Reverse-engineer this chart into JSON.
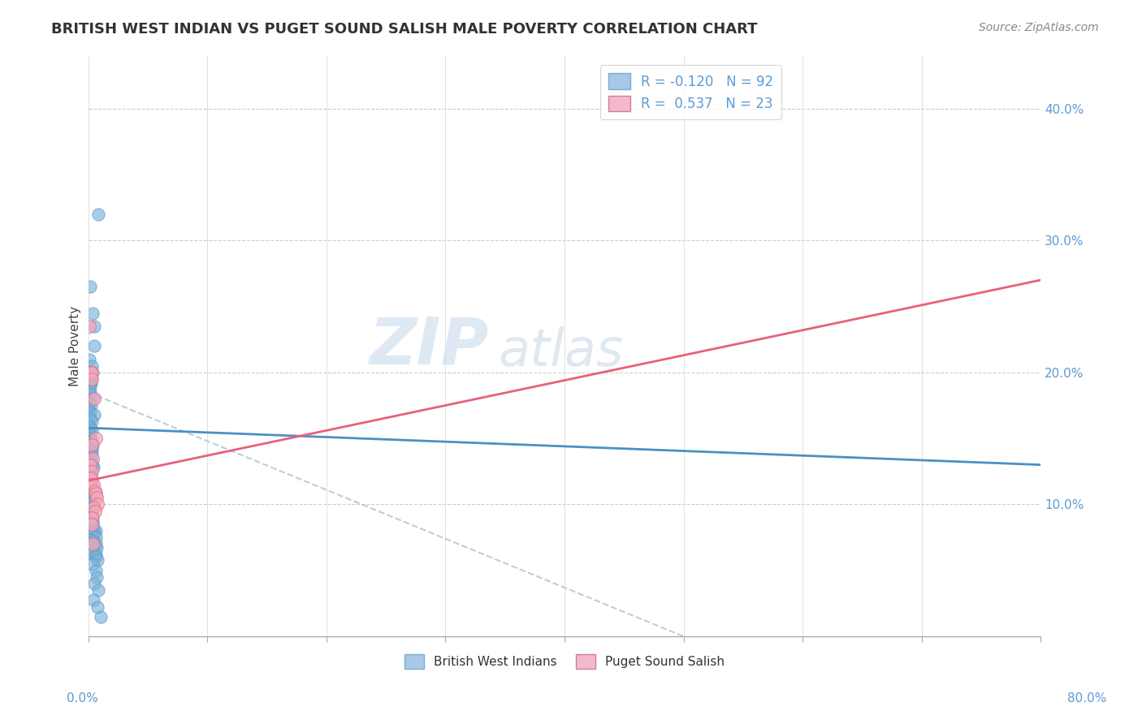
{
  "title": "BRITISH WEST INDIAN VS PUGET SOUND SALISH MALE POVERTY CORRELATION CHART",
  "source_text": "Source: ZipAtlas.com",
  "ylabel": "Male Poverty",
  "ytick_labels": [
    "10.0%",
    "20.0%",
    "30.0%",
    "40.0%"
  ],
  "ytick_values": [
    0.1,
    0.2,
    0.3,
    0.4
  ],
  "xlim": [
    0.0,
    0.8
  ],
  "ylim": [
    0.0,
    0.44
  ],
  "series1_color": "#7ab3d9",
  "series1_edge": "#5a9bc4",
  "series2_color": "#f4a8bc",
  "series2_edge": "#d9728a",
  "blue_line_color": "#4a90c4",
  "pink_line_color": "#e8607a",
  "dashed_line_color": "#a8c4d8",
  "watermark_zip": "ZIP",
  "watermark_atlas": "atlas",
  "blue_R": -0.12,
  "blue_N": 92,
  "pink_R": 0.537,
  "pink_N": 23,
  "blue_line_x0": 0.0,
  "blue_line_y0": 0.158,
  "blue_line_x1": 0.8,
  "blue_line_y1": 0.13,
  "pink_line_x0": 0.0,
  "pink_line_y0": 0.118,
  "pink_line_x1": 0.8,
  "pink_line_y1": 0.27,
  "dash_line_x0": 0.0,
  "dash_line_y0": 0.185,
  "dash_line_x1": 0.5,
  "dash_line_y1": 0.0,
  "blue_scatter_x": [
    0.008,
    0.002,
    0.003,
    0.004,
    0.005,
    0.001,
    0.002,
    0.003,
    0.001,
    0.002,
    0.003,
    0.002,
    0.001,
    0.003,
    0.002,
    0.004,
    0.001,
    0.002,
    0.001,
    0.003,
    0.004,
    0.002,
    0.003,
    0.001,
    0.002,
    0.003,
    0.002,
    0.001,
    0.002,
    0.003,
    0.001,
    0.002,
    0.003,
    0.001,
    0.002,
    0.001,
    0.003,
    0.002,
    0.001,
    0.002,
    0.003,
    0.004,
    0.002,
    0.001,
    0.002,
    0.003,
    0.001,
    0.002,
    0.001,
    0.002,
    0.001,
    0.002,
    0.001,
    0.003,
    0.002,
    0.001,
    0.002,
    0.003,
    0.002,
    0.001,
    0.005,
    0.003,
    0.004,
    0.002,
    0.003,
    0.002,
    0.004,
    0.003,
    0.002,
    0.005,
    0.006,
    0.004,
    0.003,
    0.005,
    0.004,
    0.003,
    0.006,
    0.005,
    0.007,
    0.004,
    0.003,
    0.006,
    0.005,
    0.008,
    0.004,
    0.007,
    0.006,
    0.005,
    0.009,
    0.004,
    0.008,
    0.01
  ],
  "blue_scatter_y": [
    0.32,
    0.265,
    0.245,
    0.235,
    0.22,
    0.21,
    0.205,
    0.2,
    0.198,
    0.195,
    0.192,
    0.19,
    0.188,
    0.185,
    0.183,
    0.18,
    0.178,
    0.175,
    0.173,
    0.17,
    0.168,
    0.165,
    0.163,
    0.16,
    0.158,
    0.156,
    0.154,
    0.152,
    0.15,
    0.148,
    0.147,
    0.145,
    0.143,
    0.142,
    0.14,
    0.138,
    0.137,
    0.135,
    0.133,
    0.132,
    0.13,
    0.128,
    0.127,
    0.125,
    0.123,
    0.122,
    0.12,
    0.118,
    0.117,
    0.115,
    0.114,
    0.112,
    0.11,
    0.108,
    0.107,
    0.105,
    0.103,
    0.102,
    0.1,
    0.098,
    0.097,
    0.095,
    0.093,
    0.092,
    0.09,
    0.088,
    0.087,
    0.085,
    0.083,
    0.082,
    0.08,
    0.078,
    0.077,
    0.075,
    0.073,
    0.072,
    0.07,
    0.068,
    0.067,
    0.065,
    0.063,
    0.062,
    0.06,
    0.058,
    0.055,
    0.05,
    0.045,
    0.04,
    0.035,
    0.028,
    0.022,
    0.015
  ],
  "pink_scatter_x": [
    0.001,
    0.002,
    0.003,
    0.004,
    0.005,
    0.006,
    0.003,
    0.004,
    0.002,
    0.003,
    0.001,
    0.003,
    0.002,
    0.004,
    0.005,
    0.006,
    0.007,
    0.008,
    0.005,
    0.006,
    0.003,
    0.002,
    0.004
  ],
  "pink_scatter_y": [
    0.235,
    0.2,
    0.2,
    0.195,
    0.18,
    0.15,
    0.145,
    0.135,
    0.13,
    0.125,
    0.12,
    0.12,
    0.115,
    0.115,
    0.11,
    0.108,
    0.105,
    0.1,
    0.098,
    0.095,
    0.09,
    0.085,
    0.07
  ]
}
